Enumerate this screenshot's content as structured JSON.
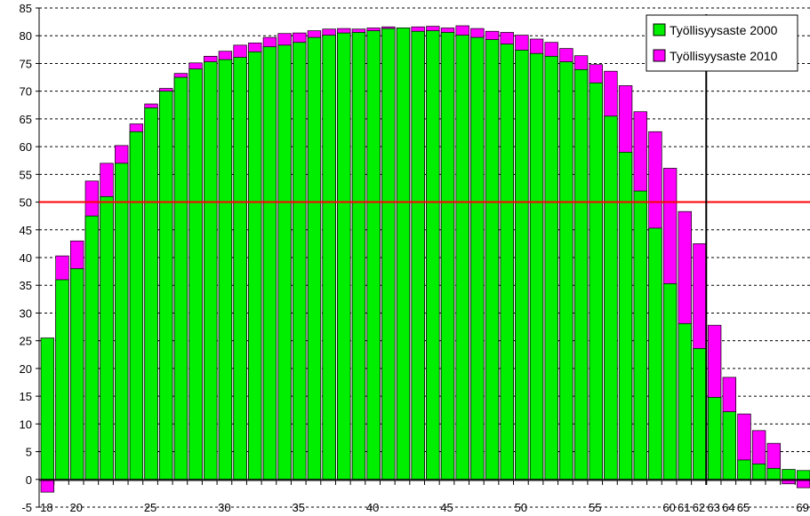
{
  "chart_data": {
    "type": "bar",
    "title": "",
    "xlabel": "",
    "ylabel": "",
    "ylim": [
      -5,
      85
    ],
    "yticks": [
      -5,
      0,
      5,
      10,
      15,
      20,
      25,
      30,
      35,
      40,
      45,
      50,
      55,
      60,
      65,
      70,
      75,
      80,
      85
    ],
    "grid": "horizontal-dashed",
    "legend_position": "top-right",
    "categories": [
      18,
      19,
      20,
      21,
      22,
      23,
      24,
      25,
      26,
      27,
      28,
      29,
      30,
      31,
      32,
      33,
      34,
      35,
      36,
      37,
      38,
      39,
      40,
      41,
      42,
      43,
      44,
      45,
      46,
      47,
      48,
      49,
      50,
      51,
      52,
      53,
      54,
      55,
      56,
      57,
      58,
      59,
      60,
      61,
      62,
      63,
      64,
      65,
      66,
      67,
      68,
      69
    ],
    "x_tick_labels": {
      "18": "18",
      "20": "20",
      "25": "25",
      "30": "30",
      "35": "35",
      "40": "40",
      "45": "45",
      "50": "50",
      "55": "55",
      "60": "60",
      "61": "61",
      "62": "62",
      "63": "63",
      "64": "64",
      "65": "65",
      "69": "69"
    },
    "series": [
      {
        "name": "Työllisyysaste 2000",
        "color": "#00ee00",
        "values": [
          25.5,
          36,
          38,
          47.5,
          51,
          57,
          62.7,
          67,
          70,
          72.5,
          74,
          75.3,
          75.7,
          76.1,
          77.1,
          78,
          78.3,
          78.8,
          79.7,
          80.1,
          80.5,
          80.6,
          80.9,
          81.3,
          81.4,
          80.8,
          80.9,
          80.6,
          80.1,
          79.7,
          79.3,
          78.5,
          77.4,
          76.8,
          76.3,
          75.3,
          73.9,
          71.5,
          65.5,
          59,
          52,
          45.3,
          35.3,
          28.1,
          23.6,
          14.8,
          12.2,
          3.5,
          2.8,
          2,
          1.8,
          1.6
        ]
      },
      {
        "name": "Työllisyysaste 2010",
        "color": "#ff00ff",
        "values": [
          -2.3,
          40.3,
          43,
          53.8,
          57,
          60.2,
          64.1,
          67.7,
          70.5,
          73.2,
          75.1,
          76.3,
          77.2,
          78.3,
          78.7,
          79.7,
          80.4,
          80.5,
          80.9,
          81.2,
          81.3,
          81.2,
          81.4,
          81.6,
          81.4,
          81.6,
          81.7,
          81.4,
          81.8,
          81.3,
          80.8,
          80.6,
          80.1,
          79.4,
          78.8,
          77.7,
          76.4,
          74.8,
          73.6,
          71,
          66.3,
          62.7,
          56.1,
          48.3,
          42.5,
          27.8,
          18.4,
          11.8,
          8.8,
          6.5,
          -0.8,
          -1.5
        ]
      }
    ],
    "reference_lines": [
      {
        "axis": "y",
        "value": 50,
        "color": "#ff0000"
      },
      {
        "axis": "x",
        "value": 62.5,
        "color": "#000000"
      }
    ]
  }
}
